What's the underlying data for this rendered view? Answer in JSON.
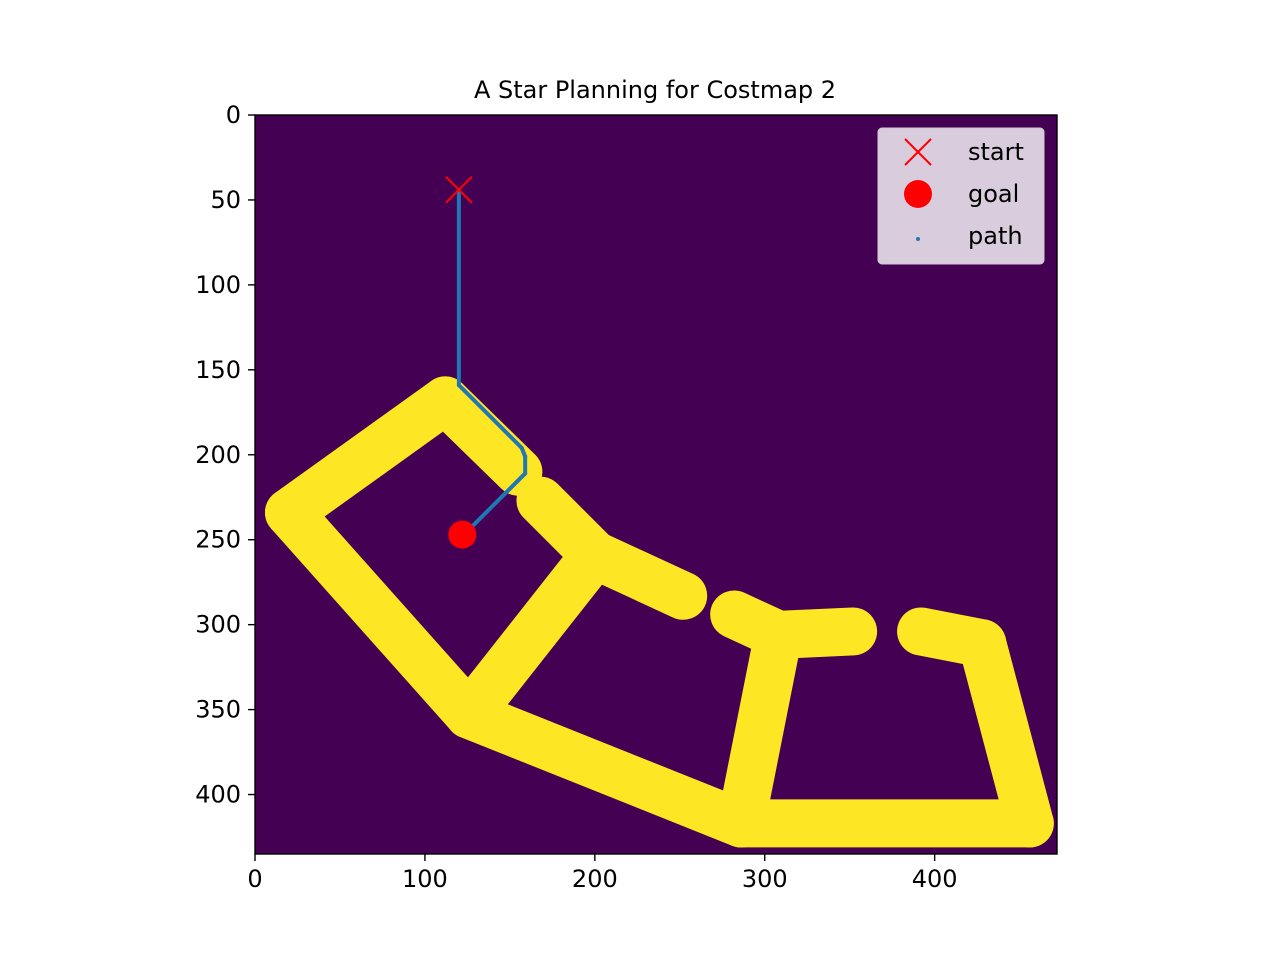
{
  "chart_data": {
    "type": "scatter",
    "title": "A Star Planning for Costmap 2",
    "xlabel": "",
    "ylabel": "",
    "xlim": [
      0,
      472
    ],
    "ylim": [
      435,
      0
    ],
    "x_ticks": [
      0,
      100,
      200,
      300,
      400
    ],
    "y_ticks": [
      0,
      50,
      100,
      150,
      200,
      250,
      300,
      350,
      400
    ],
    "grid": false,
    "legend_position": "top-right",
    "colors": {
      "free_space": "#440154",
      "obstacle": "#fde725",
      "path": "#1f77b4",
      "markers": "#ff0000"
    },
    "obstacle_segments": [
      {
        "from": [
          112,
          168
        ],
        "to": [
          155,
          210
        ]
      },
      {
        "from": [
          112,
          168
        ],
        "to": [
          20,
          234
        ]
      },
      {
        "from": [
          20,
          234
        ],
        "to": [
          126,
          353
        ]
      },
      {
        "from": [
          168,
          227
        ],
        "to": [
          200,
          259
        ]
      },
      {
        "from": [
          200,
          259
        ],
        "to": [
          126,
          353
        ]
      },
      {
        "from": [
          200,
          259
        ],
        "to": [
          252,
          283
        ]
      },
      {
        "from": [
          126,
          353
        ],
        "to": [
          286,
          417
        ]
      },
      {
        "from": [
          286,
          417
        ],
        "to": [
          456,
          417
        ]
      },
      {
        "from": [
          456,
          417
        ],
        "to": [
          428,
          311
        ]
      },
      {
        "from": [
          428,
          311
        ],
        "to": [
          392,
          304
        ]
      },
      {
        "from": [
          308,
          306
        ],
        "to": [
          286,
          417
        ]
      },
      {
        "from": [
          308,
          306
        ],
        "to": [
          352,
          304
        ]
      },
      {
        "from": [
          308,
          306
        ],
        "to": [
          282,
          294
        ]
      }
    ],
    "series": [
      {
        "name": "start",
        "marker": "x",
        "x": [
          120
        ],
        "y": [
          44
        ]
      },
      {
        "name": "goal",
        "marker": "circle",
        "x": [
          122
        ],
        "y": [
          247
        ]
      },
      {
        "name": "path",
        "marker": "dot",
        "x": [
          120,
          120,
          157,
          159,
          159,
          130,
          123
        ],
        "y": [
          44,
          159,
          196,
          201,
          211,
          240,
          247
        ]
      }
    ]
  }
}
